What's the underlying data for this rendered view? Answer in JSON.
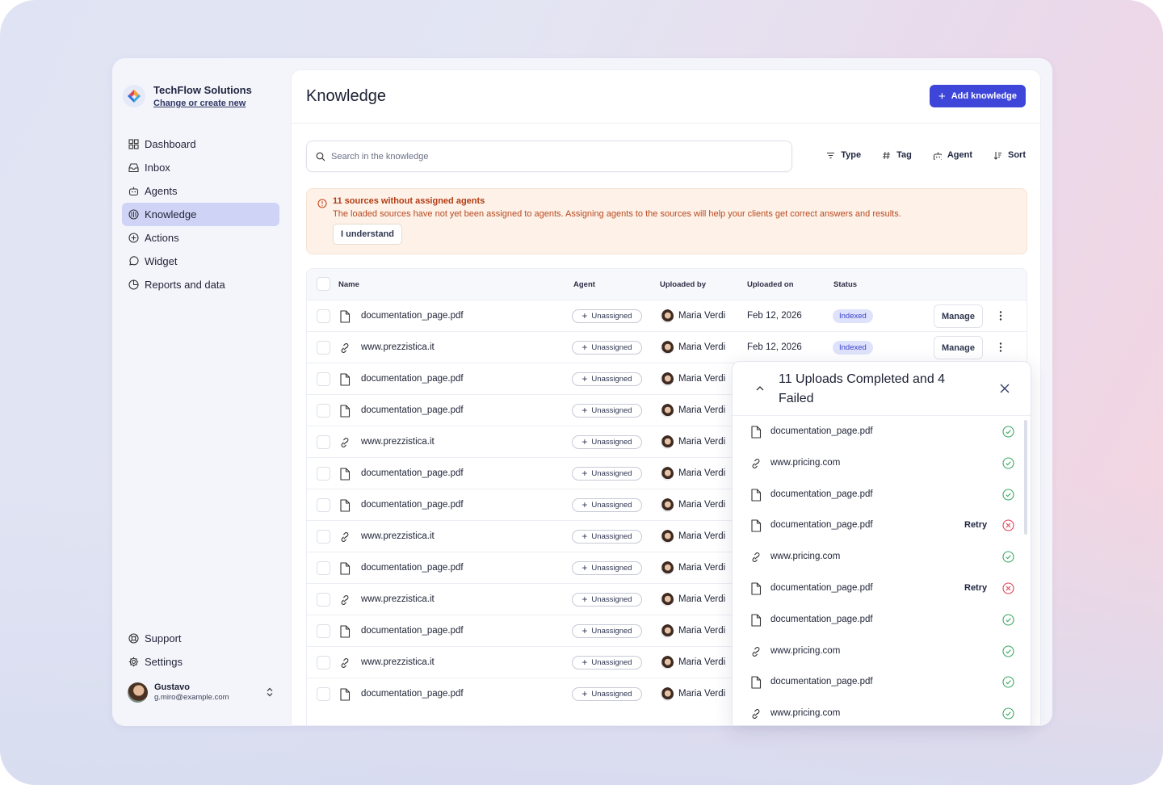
{
  "org": {
    "name": "TechFlow Solutions",
    "link": "Change or create new"
  },
  "nav": [
    {
      "label": "Dashboard",
      "icon": "dashboard-icon",
      "active": false
    },
    {
      "label": "Inbox",
      "icon": "inbox-icon",
      "active": false
    },
    {
      "label": "Agents",
      "icon": "robot-icon",
      "active": false
    },
    {
      "label": "Knowledge",
      "icon": "knowledge-icon",
      "active": true
    },
    {
      "label": "Actions",
      "icon": "plus-circle-icon",
      "active": false
    },
    {
      "label": "Widget",
      "icon": "chat-bubble-icon",
      "active": false
    },
    {
      "label": "Reports and data",
      "icon": "pie-chart-icon",
      "active": false
    }
  ],
  "nav_bottom": [
    {
      "label": "Support",
      "icon": "lifebuoy-icon"
    },
    {
      "label": "Settings",
      "icon": "gear-icon"
    }
  ],
  "user": {
    "name": "Gustavo",
    "email": "g.miro@example.com"
  },
  "page": {
    "title": "Knowledge",
    "add_label": "Add knowledge"
  },
  "search": {
    "placeholder": "Search in the knowledge"
  },
  "filters": [
    {
      "label": "Type",
      "icon": "filter-icon"
    },
    {
      "label": "Tag",
      "icon": "hash-icon"
    },
    {
      "label": "Agent",
      "icon": "robot-icon"
    },
    {
      "label": "Sort",
      "icon": "sort-icon"
    }
  ],
  "alert": {
    "title": "11 sources without assigned agents",
    "text": "The loaded sources have not yet been assigned to agents. Assigning agents to the sources will help your clients get correct answers and results.",
    "button": "I understand"
  },
  "table": {
    "columns": [
      "Name",
      "Agent",
      "Uploaded by",
      "Uploaded on",
      "Status"
    ],
    "rows": [
      {
        "type": "file",
        "name": "documentation_page.pdf",
        "agent": "Unassigned",
        "uploaded_by": "Maria Verdi",
        "uploaded_on": "Feb 12, 2026",
        "status": "Indexed",
        "action": "Manage"
      },
      {
        "type": "link",
        "name": "www.prezzistica.it",
        "agent": "Unassigned",
        "uploaded_by": "Maria Verdi",
        "uploaded_on": "Feb 12, 2026",
        "status": "Indexed",
        "action": "Manage"
      },
      {
        "type": "file",
        "name": "documentation_page.pdf",
        "agent": "Unassigned",
        "uploaded_by": "Maria Verdi"
      },
      {
        "type": "file",
        "name": "documentation_page.pdf",
        "agent": "Unassigned",
        "uploaded_by": "Maria Verdi"
      },
      {
        "type": "link",
        "name": "www.prezzistica.it",
        "agent": "Unassigned",
        "uploaded_by": "Maria Verdi"
      },
      {
        "type": "file",
        "name": "documentation_page.pdf",
        "agent": "Unassigned",
        "uploaded_by": "Maria Verdi"
      },
      {
        "type": "file",
        "name": "documentation_page.pdf",
        "agent": "Unassigned",
        "uploaded_by": "Maria Verdi"
      },
      {
        "type": "link",
        "name": "www.prezzistica.it",
        "agent": "Unassigned",
        "uploaded_by": "Maria Verdi"
      },
      {
        "type": "file",
        "name": "documentation_page.pdf",
        "agent": "Unassigned",
        "uploaded_by": "Maria Verdi"
      },
      {
        "type": "link",
        "name": "www.prezzistica.it",
        "agent": "Unassigned",
        "uploaded_by": "Maria Verdi"
      },
      {
        "type": "file",
        "name": "documentation_page.pdf",
        "agent": "Unassigned",
        "uploaded_by": "Maria Verdi"
      },
      {
        "type": "link",
        "name": "www.prezzistica.it",
        "agent": "Unassigned",
        "uploaded_by": "Maria Verdi"
      },
      {
        "type": "file",
        "name": "documentation_page.pdf",
        "agent": "Unassigned",
        "uploaded_by": "Maria Verdi"
      }
    ]
  },
  "uploads": {
    "title": "11 Uploads Completed and 4 Failed",
    "retry_label": "Retry",
    "items": [
      {
        "type": "file",
        "name": "documentation_page.pdf",
        "status": "success"
      },
      {
        "type": "link",
        "name": "www.pricing.com",
        "status": "success"
      },
      {
        "type": "file",
        "name": "documentation_page.pdf",
        "status": "success"
      },
      {
        "type": "file",
        "name": "documentation_page.pdf",
        "status": "failed"
      },
      {
        "type": "link",
        "name": "www.pricing.com",
        "status": "success"
      },
      {
        "type": "file",
        "name": "documentation_page.pdf",
        "status": "failed"
      },
      {
        "type": "file",
        "name": "documentation_page.pdf",
        "status": "success"
      },
      {
        "type": "link",
        "name": "www.pricing.com",
        "status": "success"
      },
      {
        "type": "file",
        "name": "documentation_page.pdf",
        "status": "success"
      },
      {
        "type": "link",
        "name": "www.pricing.com",
        "status": "success"
      }
    ]
  },
  "colors": {
    "accent": "#3d46d9",
    "active_nav": "#cfd4f6",
    "alert_bg": "#fdf1e8",
    "alert_text": "#b23d12",
    "success": "#3aa865",
    "error": "#e0435a"
  }
}
